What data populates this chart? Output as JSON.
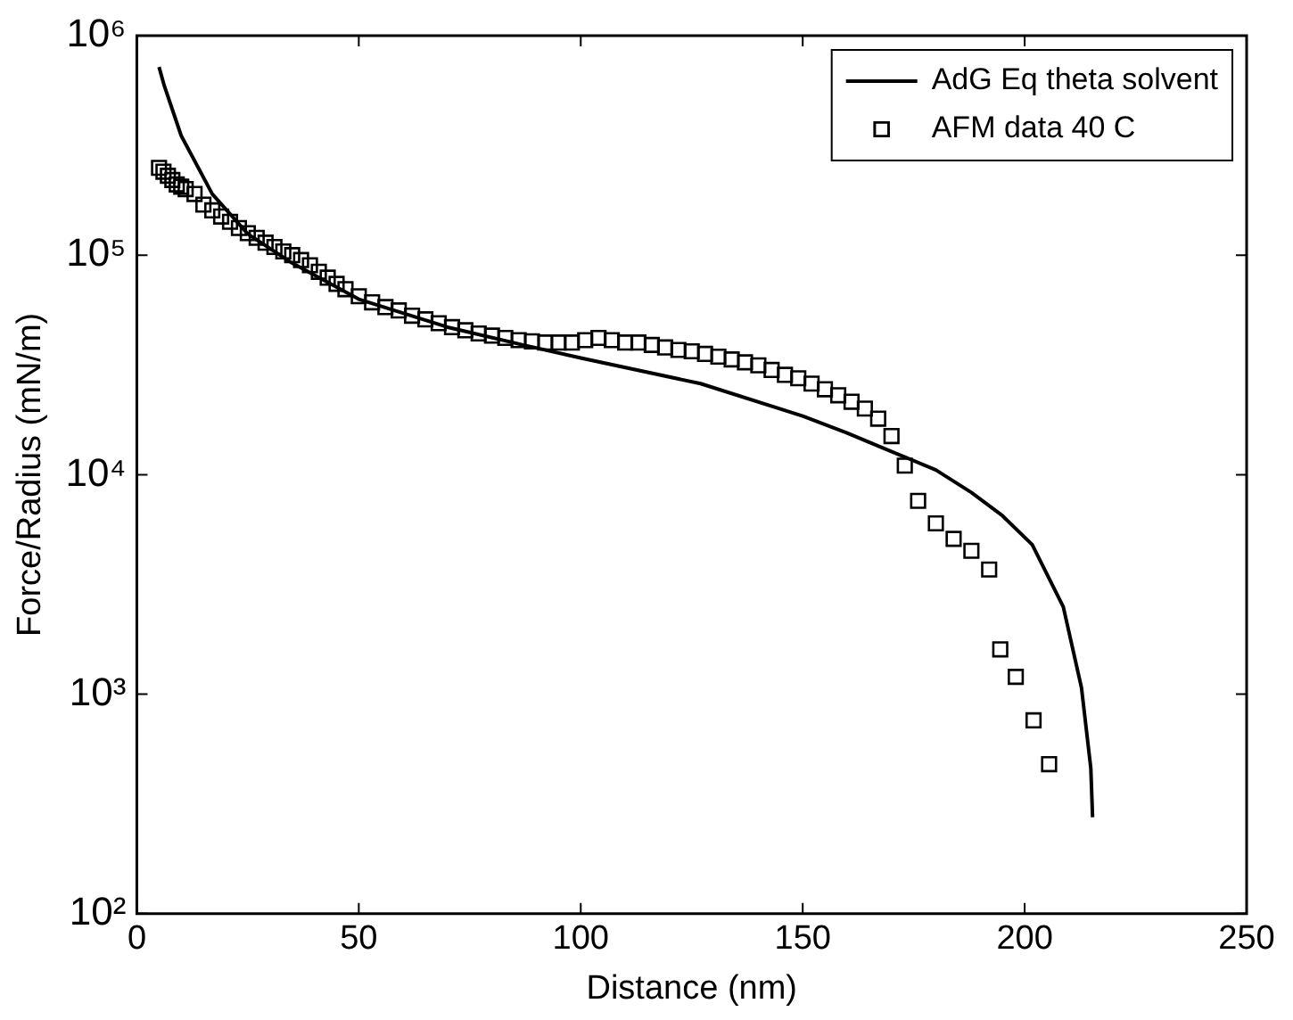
{
  "chart_data": {
    "type": "scatter",
    "xlabel": "Distance (nm)",
    "ylabel": "Force/Radius (mN/m)",
    "log": "y",
    "grid": false,
    "legend": "top right",
    "xlim": [
      0,
      250
    ],
    "xticks": [
      0,
      50,
      100,
      150,
      200,
      250
    ],
    "ylim": [
      100,
      1000000
    ],
    "yticks": [
      {
        "value": 100,
        "label": "10²"
      },
      {
        "value": 1000,
        "label": "10³"
      },
      {
        "value": 10000,
        "label": "10⁴"
      },
      {
        "value": 100000,
        "label": "10⁵"
      },
      {
        "value": 1000000,
        "label": "10⁶"
      }
    ],
    "series": [
      {
        "name": "AdG Eq theta solvent",
        "type": "line",
        "color": "#000000",
        "marker": "none",
        "line_style": "solid",
        "x": [
          5,
          6.2,
          10,
          17,
          25,
          35,
          50,
          70,
          87,
          100,
          127,
          150,
          160,
          169,
          180,
          188,
          195,
          201.7,
          208.7,
          212.8,
          214.9,
          215.3
        ],
        "values": [
          720000,
          590000,
          350000,
          190000,
          125000,
          92000,
          63000,
          47000,
          39000,
          34000,
          26000,
          18500,
          15500,
          13000,
          10500,
          8300,
          6500,
          4800,
          2500,
          1070,
          460,
          275
        ]
      },
      {
        "name": "AFM data 40 C",
        "type": "scatter",
        "color": "#000000",
        "marker": "square",
        "x": [
          5,
          6,
          7,
          8,
          9,
          10,
          11,
          13,
          15,
          17,
          19,
          21,
          23,
          25,
          27,
          29,
          31,
          33,
          35,
          37,
          39,
          41,
          43,
          45,
          47,
          50,
          53,
          56,
          59,
          62,
          65,
          68,
          71,
          74,
          77,
          80,
          83,
          86,
          89,
          92,
          95,
          98,
          101,
          104,
          107,
          110,
          113,
          116,
          119,
          122,
          125,
          128,
          131,
          134,
          137,
          140,
          143,
          146,
          149,
          152,
          155,
          158,
          161,
          164,
          167,
          170,
          173,
          176,
          180,
          184,
          188,
          192,
          194.5,
          198,
          202,
          205.5
        ],
        "values": [
          250000,
          240000,
          230000,
          220000,
          210000,
          205000,
          200000,
          190000,
          170000,
          160000,
          150000,
          142000,
          133000,
          126000,
          120000,
          114000,
          109000,
          104000,
          100000,
          95000,
          90000,
          84000,
          79000,
          74000,
          70000,
          65000,
          61000,
          58000,
          56000,
          53000,
          51000,
          49000,
          47000,
          45500,
          44000,
          43000,
          42000,
          41000,
          40500,
          40000,
          40000,
          40000,
          41000,
          42000,
          41000,
          40000,
          40000,
          39000,
          38000,
          37000,
          36500,
          35500,
          34500,
          33500,
          32500,
          31500,
          30000,
          28500,
          27500,
          26000,
          24500,
          23000,
          21500,
          20000,
          18000,
          15000,
          11000,
          7600,
          6000,
          5100,
          4500,
          3700,
          1600,
          1200,
          760,
          480
        ]
      }
    ]
  }
}
